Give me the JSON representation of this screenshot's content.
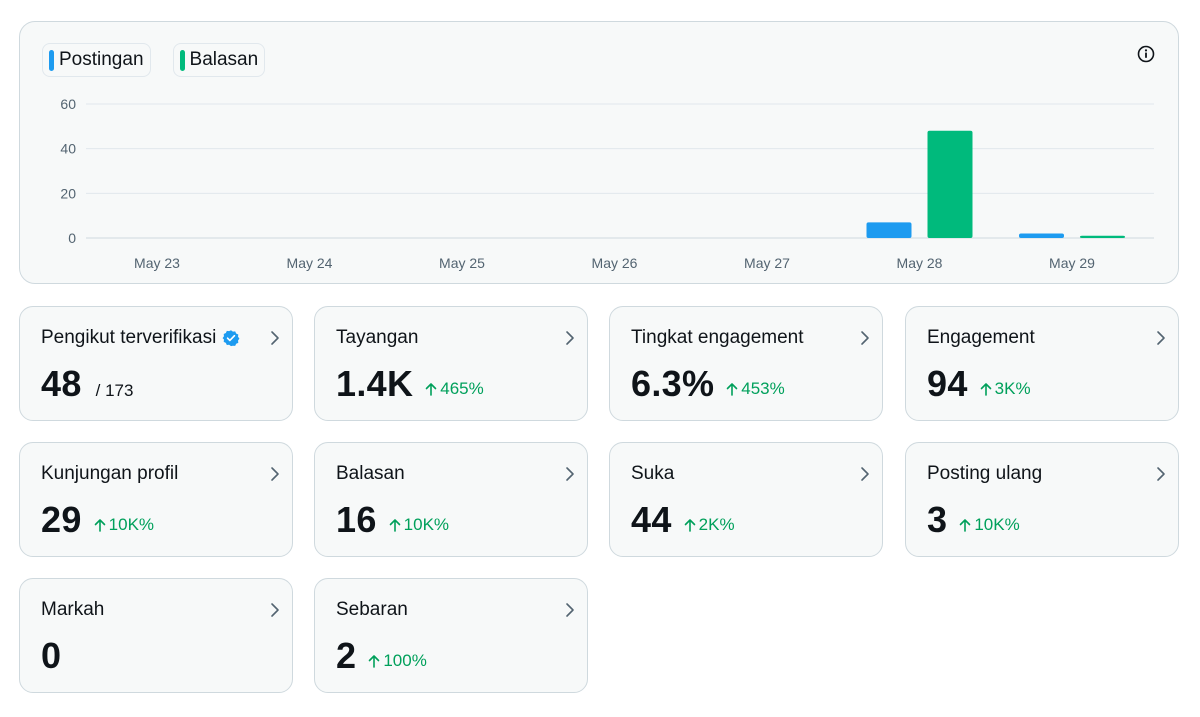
{
  "chart": {
    "legend": [
      {
        "label": "Postingan",
        "color": "#1d9bf0"
      },
      {
        "label": "Balasan",
        "color": "#00ba7c"
      }
    ],
    "info_icon": "info-icon"
  },
  "chart_data": {
    "type": "bar",
    "categories": [
      "May 23",
      "May 24",
      "May 25",
      "May 26",
      "May 27",
      "May 28",
      "May 29"
    ],
    "series": [
      {
        "name": "Postingan",
        "color": "#1d9bf0",
        "values": [
          0,
          0,
          0,
          0,
          0,
          7,
          2
        ]
      },
      {
        "name": "Balasan",
        "color": "#00ba7c",
        "values": [
          0,
          0,
          0,
          0,
          0,
          48,
          1
        ]
      }
    ],
    "yticks": [
      0,
      20,
      40,
      60
    ],
    "ylim": [
      0,
      60
    ],
    "grid": true,
    "legend_position": "top-left"
  },
  "cards": [
    {
      "title": "Pengikut terverifikasi",
      "value": "48",
      "sub": "/ 173",
      "verified": true
    },
    {
      "title": "Tayangan",
      "value": "1.4K",
      "change": "465%"
    },
    {
      "title": "Tingkat engagement",
      "value": "6.3%",
      "change": "453%"
    },
    {
      "title": "Engagement",
      "value": "94",
      "change": "3K%"
    },
    {
      "title": "Kunjungan profil",
      "value": "29",
      "change": "10K%"
    },
    {
      "title": "Balasan",
      "value": "16",
      "change": "10K%"
    },
    {
      "title": "Suka",
      "value": "44",
      "change": "2K%"
    },
    {
      "title": "Posting ulang",
      "value": "3",
      "change": "10K%"
    },
    {
      "title": "Markah",
      "value": "0"
    },
    {
      "title": "Sebaran",
      "value": "2",
      "change": "100%"
    }
  ],
  "colors": {
    "positive": "#00a05b",
    "muted": "#536471",
    "grid": "#e1e8ed"
  }
}
